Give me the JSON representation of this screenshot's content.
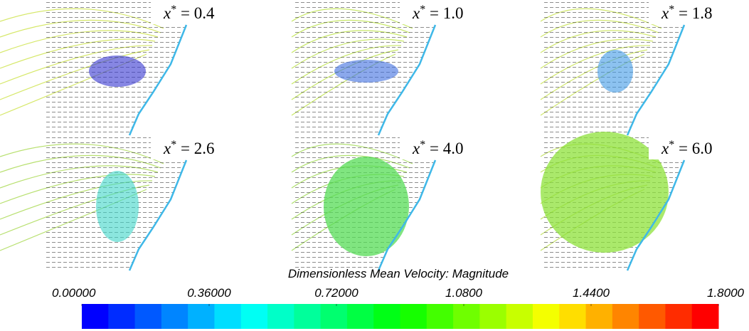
{
  "panels": [
    {
      "label_parts": [
        "x",
        "*",
        " = 0.4"
      ]
    },
    {
      "label_parts": [
        "x",
        "*",
        " = 1.0"
      ]
    },
    {
      "label_parts": [
        "x",
        "*",
        " = 1.8"
      ]
    },
    {
      "label_parts": [
        "x",
        "*",
        " = 2.6"
      ]
    },
    {
      "label_parts": [
        "x",
        "*",
        " = 4.0"
      ]
    },
    {
      "label_parts": [
        "x",
        "*",
        " = 6.0"
      ]
    }
  ],
  "colorbar": {
    "title": "Dimensionless Mean Velocity: Magnitude",
    "lim": [
      0,
      1.8
    ],
    "steps": 24,
    "ticks": [
      {
        "value": 0,
        "label": "0.00000"
      },
      {
        "value": 0.36,
        "label": "0.36000"
      },
      {
        "value": 0.72,
        "label": "0.72000"
      },
      {
        "value": 1.08,
        "label": "1.0800"
      },
      {
        "value": 1.44,
        "label": "1.4400"
      },
      {
        "value": 1.8,
        "label": "1.8000"
      }
    ]
  }
}
